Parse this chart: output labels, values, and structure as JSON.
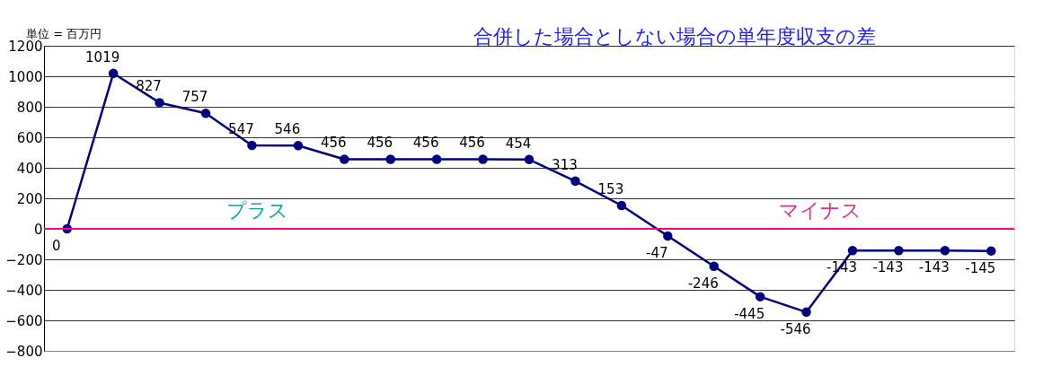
{
  "chart_data": {
    "type": "line",
    "title": "合併した場合としない場合の単年度収支の差",
    "ylabel": "単位 = 百万円",
    "categories": [
      null,
      null,
      null,
      null,
      null,
      null,
      null,
      null,
      null,
      null,
      null,
      null,
      null,
      null,
      null,
      null,
      null,
      null,
      null,
      null,
      null
    ],
    "series": [
      {
        "color": "#000080",
        "values": [
          0,
          1019,
          827,
          757,
          547,
          546,
          456,
          456,
          456,
          456,
          454,
          313,
          153,
          -47,
          -246,
          -445,
          -546,
          -143,
          -143,
          -143,
          -145
        ]
      }
    ],
    "ylim": [
      -800,
      1200
    ],
    "yticks": [
      -800,
      -600,
      -400,
      -200,
      0,
      200,
      400,
      600,
      800,
      1000,
      1200
    ],
    "grid": "y",
    "marker": "circle",
    "line_style": "solid",
    "data_labels": true,
    "ref_lines": [
      {
        "axis": "y",
        "value": 0,
        "color": "#ff0080"
      }
    ],
    "annotations": [
      "プラス",
      "マイナス"
    ]
  }
}
